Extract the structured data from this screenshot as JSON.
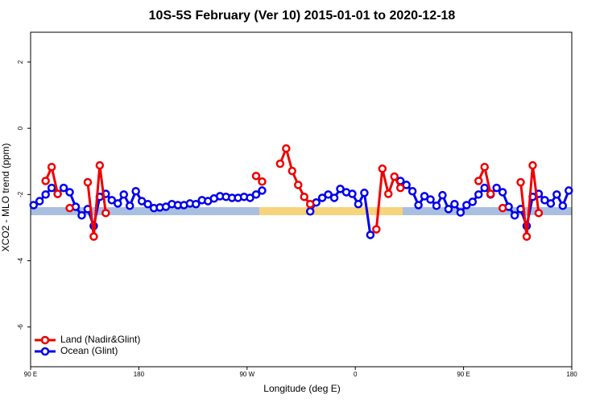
{
  "chart_data": {
    "type": "line",
    "title": "10S-5S February (Ver 10)   2015-01-01 to 2020-12-18",
    "x_label": "Longitude (deg E)",
    "y_label": "XCO2 - MLO trend (ppm)",
    "x": [
      92.5,
      97.5,
      102.5,
      107.5,
      112.5,
      117.5,
      122.5,
      127.5,
      132.5,
      137.5,
      142.5,
      147.5,
      152.5,
      157.5,
      162.5,
      167.5,
      172.5,
      177.5,
      182.5,
      187.5,
      192.5,
      197.5,
      202.5,
      207.5,
      212.5,
      217.5,
      222.5,
      227.5,
      232.5,
      237.5,
      242.5,
      247.5,
      252.5,
      257.5,
      262.5,
      267.5,
      272.5,
      277.5,
      282.5,
      287.5,
      292.5,
      297.5,
      302.5,
      307.5,
      312.5,
      317.5,
      322.5,
      327.5,
      332.5,
      337.5,
      342.5,
      347.5,
      352.5,
      357.5,
      362.5,
      367.5,
      372.5,
      377.5,
      382.5,
      387.5,
      392.5,
      397.5,
      402.5,
      407.5,
      412.5,
      417.5,
      422.5,
      427.5,
      432.5,
      437.5,
      442.5,
      447.5,
      452.5,
      457.5,
      462.5,
      467.5,
      472.5,
      477.5,
      482.5,
      487.5,
      492.5,
      497.5,
      502.5,
      507.5,
      512.5,
      517.5,
      522.5,
      527.5,
      532.5,
      537.5
    ],
    "series": [
      {
        "name": "Ocean (Glint)",
        "color": "#0000ee",
        "values": [
          -2.32,
          -2.2,
          -2.0,
          -1.8,
          -1.98,
          -1.8,
          -1.93,
          -2.37,
          -2.63,
          -2.44,
          -2.95,
          -2.07,
          -1.98,
          -2.17,
          -2.27,
          -2.0,
          -2.34,
          -1.9,
          -2.2,
          -2.29,
          -2.41,
          -2.39,
          -2.37,
          -2.29,
          -2.32,
          -2.32,
          -2.27,
          -2.29,
          -2.17,
          -2.2,
          -2.12,
          -2.05,
          -2.07,
          -2.1,
          -2.1,
          -2.07,
          -2.1,
          -2.0,
          -1.88,
          null,
          null,
          null,
          null,
          null,
          null,
          null,
          -2.51,
          -2.24,
          -2.1,
          -2.0,
          -2.1,
          -1.83,
          -1.93,
          -1.98,
          -2.29,
          -1.95,
          -3.22,
          null,
          null,
          null,
          null,
          -1.59,
          -1.71,
          -1.9,
          -2.32,
          -2.05,
          -2.15,
          -2.34,
          -2.02,
          -2.44,
          -2.29,
          -2.54,
          -2.32,
          -2.22,
          -2.0,
          -1.8,
          -2.0,
          -1.8,
          -1.93,
          -2.37,
          -2.63,
          -2.44,
          -2.95,
          -2.07,
          -1.98,
          -2.17,
          -2.27,
          -2.0,
          -2.34,
          -1.88
        ]
      },
      {
        "name": "Land (Nadir&Glint)",
        "color": "#ee0000",
        "values": [
          null,
          null,
          -1.59,
          -1.17,
          -1.98,
          null,
          -2.41,
          null,
          null,
          -1.63,
          -3.27,
          -1.12,
          -2.56,
          null,
          null,
          null,
          null,
          null,
          null,
          null,
          null,
          null,
          null,
          null,
          null,
          null,
          null,
          null,
          null,
          null,
          null,
          null,
          null,
          null,
          null,
          null,
          null,
          -1.44,
          -1.61,
          null,
          null,
          -1.07,
          -0.61,
          -1.29,
          -1.71,
          -2.07,
          -2.29,
          null,
          null,
          null,
          null,
          null,
          null,
          null,
          null,
          null,
          null,
          -3.05,
          -1.22,
          -1.98,
          -1.46,
          -1.8,
          null,
          null,
          null,
          null,
          null,
          null,
          null,
          null,
          null,
          null,
          null,
          null,
          -1.59,
          -1.17,
          -1.98,
          null,
          -2.41,
          null,
          null,
          -1.63,
          -3.27,
          -1.12,
          -2.56,
          null,
          null,
          null,
          null,
          null
        ]
      }
    ],
    "xlim": [
      90,
      540
    ],
    "xticks": [
      {
        "value": 90,
        "label": "90 E"
      },
      180,
      {
        "value": 270,
        "label": "90 W"
      },
      {
        "value": 360,
        "label": "0"
      },
      {
        "value": 450,
        "label": "90 E"
      },
      {
        "value": 540,
        "label": "180"
      }
    ],
    "ylim": [
      -7.2,
      2.9
    ],
    "yticks": [
      2,
      0,
      -2,
      -4,
      -6
    ],
    "legend": "bottom-left"
  }
}
